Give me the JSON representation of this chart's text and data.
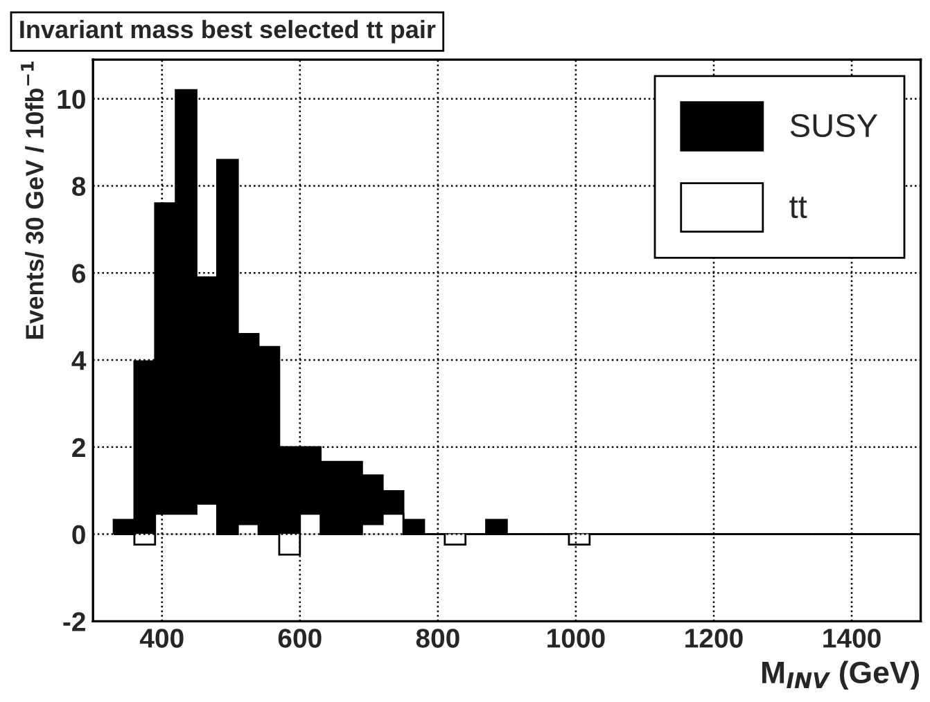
{
  "chart_data": {
    "type": "histogram",
    "title": "Invariant mass best selected tt pair",
    "xlabel": "M$_{INV}$ (GeV)",
    "ylabel": "Events/ 30 GeV / 10fb$^{−1}$",
    "bins": [
      330,
      360,
      390,
      420,
      450,
      480,
      510,
      540,
      570,
      600,
      630,
      660,
      690,
      720,
      750,
      780,
      810,
      840,
      870,
      900,
      930,
      960,
      990,
      1020,
      1050,
      1080,
      1110,
      1140,
      1170,
      1200,
      1230,
      1260,
      1290,
      1320,
      1350,
      1380,
      1410,
      1440,
      1470,
      1500
    ],
    "series": [
      {
        "name": "SUSY",
        "color": "#000000",
        "values": [
          0.33,
          3.97,
          7.6,
          10.2,
          5.9,
          8.6,
          4.6,
          4.3,
          2.0,
          2.0,
          1.66,
          1.66,
          1.35,
          0.99,
          0.33,
          0,
          0,
          0,
          0.33,
          0,
          0,
          0,
          0,
          0,
          0,
          0,
          0,
          0,
          0,
          0,
          0,
          0,
          0,
          0,
          0,
          0,
          0,
          0,
          0
        ]
      },
      {
        "name": "tt",
        "color": "#ffffff",
        "values": [
          0,
          -0.24,
          0.47,
          0.47,
          0.7,
          0,
          0.23,
          0,
          -0.47,
          0.47,
          0,
          0,
          0.23,
          0.47,
          0,
          0,
          -0.24,
          0,
          0,
          0,
          0,
          0,
          -0.24,
          0,
          0,
          0,
          0,
          0,
          0,
          0,
          0,
          0,
          0,
          0,
          0,
          0,
          0,
          0,
          0
        ]
      }
    ],
    "xlim": [
      300,
      1500
    ],
    "ylim": [
      -2,
      10.9
    ],
    "xticks": [
      400,
      600,
      800,
      1000,
      1200,
      1400
    ],
    "yticks": [
      -2,
      0,
      2,
      4,
      6,
      8,
      10
    ],
    "grid": true,
    "legend": "top right"
  }
}
